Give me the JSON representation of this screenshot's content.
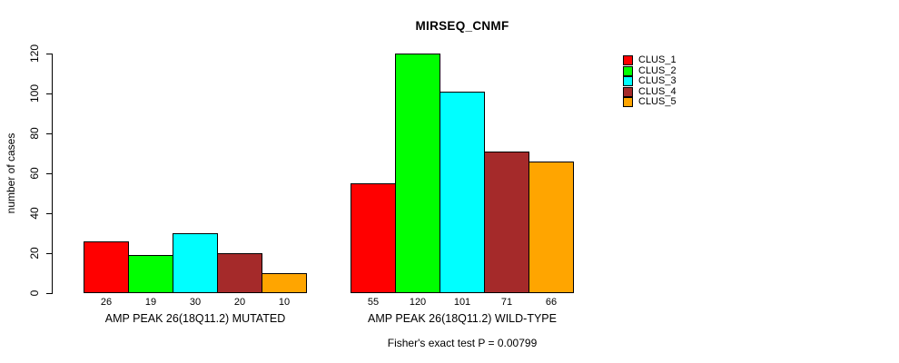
{
  "chart_data": {
    "type": "bar",
    "title": "MIRSEQ_CNMF",
    "ylabel": "number of cases",
    "ylim": [
      0,
      120
    ],
    "yticks": [
      0,
      20,
      40,
      60,
      80,
      100,
      120
    ],
    "grid": false,
    "legend_position": "right-outside-top",
    "categories": [
      "AMP PEAK 26(18Q11.2) MUTATED",
      "AMP PEAK 26(18Q11.2) WILD-TYPE"
    ],
    "series": [
      {
        "name": "CLUS_1",
        "color": "#ff0000",
        "values": [
          26,
          55
        ]
      },
      {
        "name": "CLUS_2",
        "color": "#00ff00",
        "values": [
          19,
          120
        ]
      },
      {
        "name": "CLUS_3",
        "color": "#00ffff",
        "values": [
          30,
          101
        ]
      },
      {
        "name": "CLUS_4",
        "color": "#a52a2a",
        "values": [
          20,
          71
        ]
      },
      {
        "name": "CLUS_5",
        "color": "#ffa500",
        "values": [
          10,
          66
        ]
      }
    ],
    "annotation": "Fisher's exact test P = 0.00799"
  }
}
